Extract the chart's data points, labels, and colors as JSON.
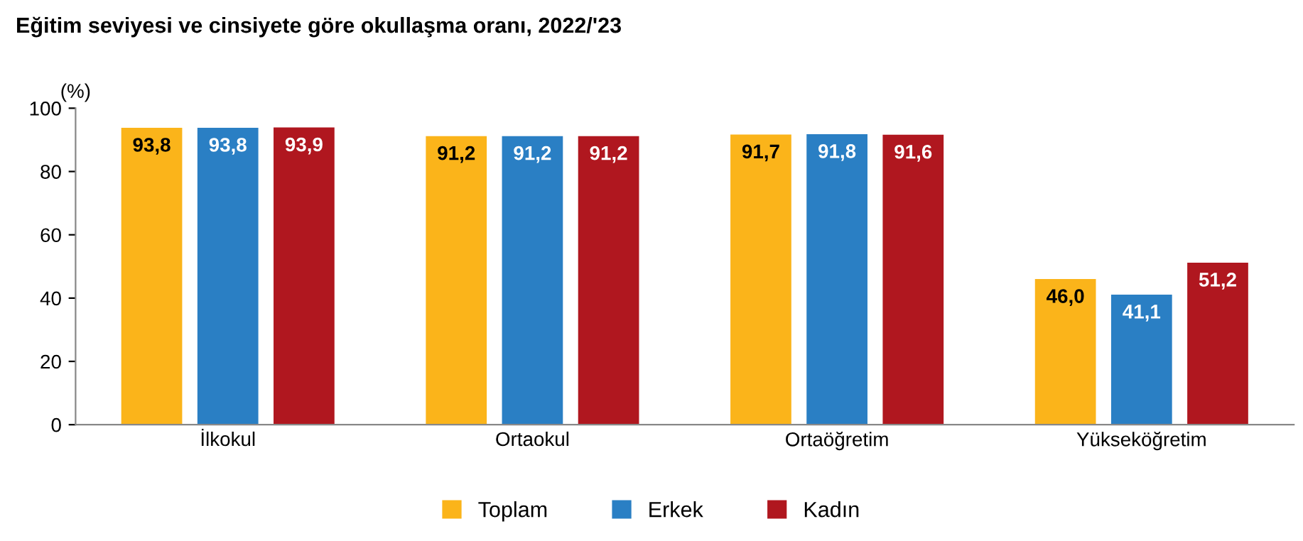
{
  "chart_data": {
    "type": "bar",
    "title": "Eğitim seviyesi ve cinsiyete göre okullaşma oranı, 2022/'23",
    "ylabel": "(%)",
    "categories": [
      "İlkokul",
      "Ortaokul",
      "Ortaöğretim",
      "Yükseköğretim"
    ],
    "series": [
      {
        "name": "Toplam",
        "color": "#fbb41a",
        "values": [
          93.8,
          91.2,
          91.7,
          46.0
        ],
        "value_labels": [
          "93,8",
          "91,2",
          "91,7",
          "46,0"
        ]
      },
      {
        "name": "Erkek",
        "color": "#2a7fc4",
        "values": [
          93.8,
          91.2,
          91.8,
          41.1
        ],
        "value_labels": [
          "93,8",
          "91,2",
          "91,8",
          "41,1"
        ]
      },
      {
        "name": "Kadın",
        "color": "#b0171f",
        "values": [
          93.9,
          91.2,
          91.6,
          51.2
        ],
        "value_labels": [
          "93,9",
          "91,2",
          "91,6",
          "51,2"
        ]
      }
    ],
    "ylim": [
      0,
      100
    ],
    "yticks": [
      0,
      20,
      40,
      60,
      80,
      100
    ],
    "grid": false,
    "legend": "bottom"
  }
}
